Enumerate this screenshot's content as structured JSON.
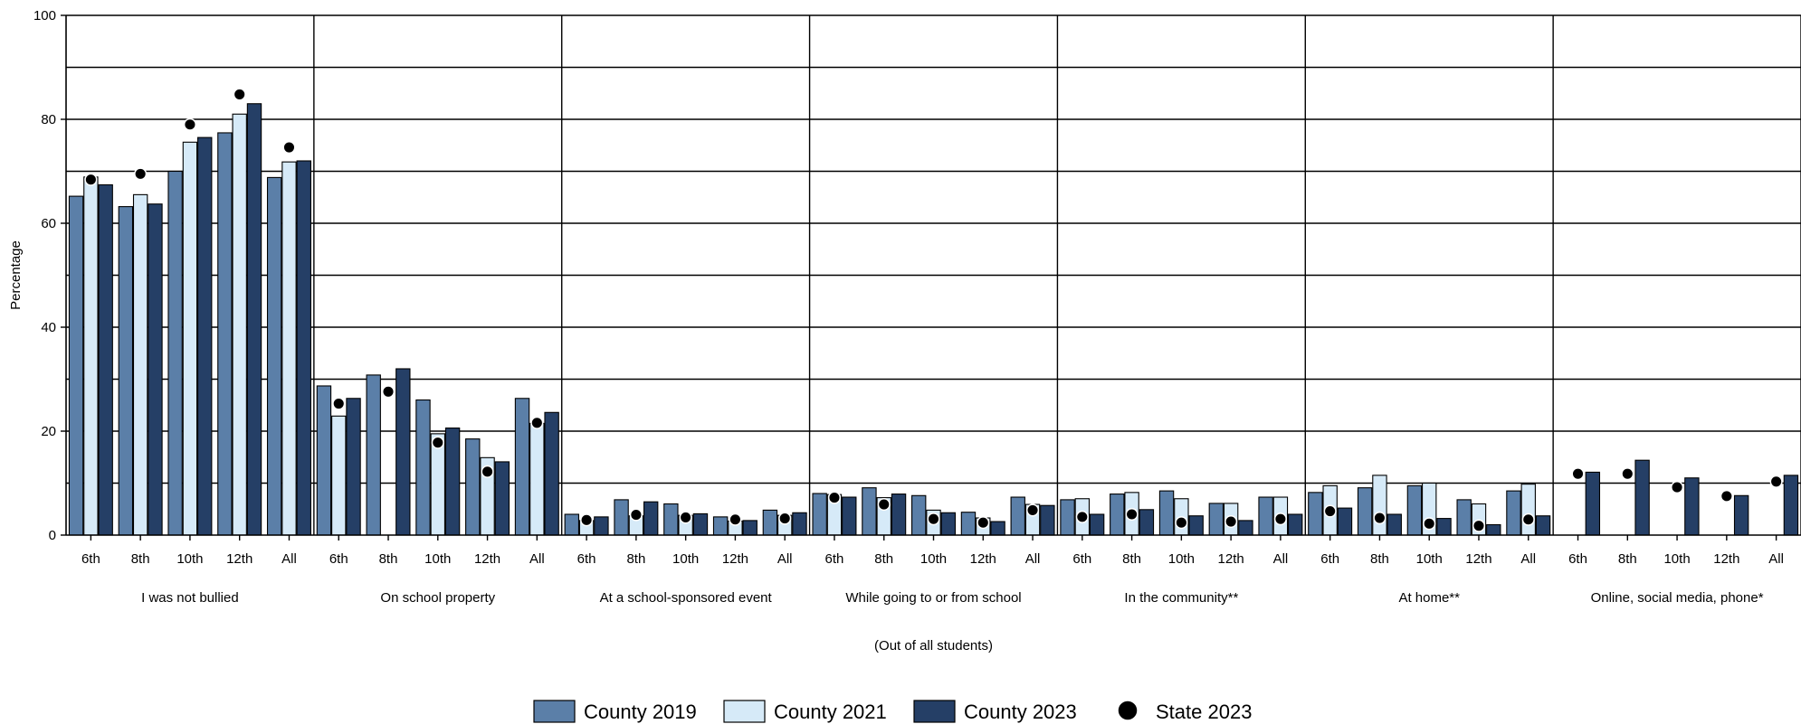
{
  "chart_data": {
    "type": "bar",
    "title": "",
    "ylabel": "Percentage",
    "xlabel": "(Out of all students)",
    "ylim": [
      0,
      100
    ],
    "yticks": [
      0,
      20,
      40,
      60,
      80,
      100
    ],
    "grid": true,
    "legend_position": "bottom",
    "groups": [
      "I was not bullied",
      "On school property",
      "At a school-sponsored event",
      "While going to or from school",
      "In the community**",
      "At home**",
      "Online, social media, phone*"
    ],
    "categories": [
      "6th",
      "8th",
      "10th",
      "12th",
      "All"
    ],
    "series": [
      {
        "name": "County 2019",
        "color": "#5b7fa8",
        "values": [
          [
            65.2,
            63.2,
            70.0,
            77.4,
            68.8
          ],
          [
            28.7,
            30.8,
            26.0,
            18.5,
            26.3
          ],
          [
            4.0,
            6.8,
            6.0,
            3.5,
            4.8
          ],
          [
            8.0,
            9.1,
            7.6,
            4.4,
            7.3
          ],
          [
            6.8,
            7.9,
            8.5,
            6.1,
            7.3
          ],
          [
            8.2,
            9.1,
            9.5,
            6.8,
            8.5
          ],
          [
            null,
            null,
            null,
            null,
            null
          ]
        ]
      },
      {
        "name": "County 2021",
        "color": "#d6eaf8",
        "values": [
          [
            68.9,
            65.5,
            75.6,
            81.0,
            71.8
          ],
          [
            22.9,
            null,
            19.5,
            14.9,
            21.5
          ],
          [
            2.8,
            3.7,
            3.8,
            2.7,
            3.8
          ],
          [
            7.8,
            7.2,
            4.8,
            3.3,
            5.9
          ],
          [
            7.0,
            8.2,
            7.0,
            6.1,
            7.3
          ],
          [
            9.5,
            11.5,
            10.0,
            6.0,
            9.8
          ],
          [
            null,
            null,
            null,
            null,
            null
          ]
        ]
      },
      {
        "name": "County 2023",
        "color": "#253f66",
        "values": [
          [
            67.4,
            63.7,
            76.5,
            83.0,
            72.0
          ],
          [
            26.3,
            32.0,
            20.6,
            14.1,
            23.6
          ],
          [
            3.5,
            6.4,
            4.1,
            2.8,
            4.3
          ],
          [
            7.3,
            7.9,
            4.3,
            2.6,
            5.7
          ],
          [
            4.0,
            4.9,
            3.7,
            2.8,
            4.0
          ],
          [
            5.2,
            4.0,
            3.2,
            2.0,
            3.7
          ],
          [
            12.1,
            14.4,
            11.0,
            7.6,
            11.5
          ]
        ]
      },
      {
        "name": "State 2023",
        "type": "scatter",
        "color": "#000000",
        "values": [
          [
            68.4,
            69.5,
            79.0,
            84.8,
            74.6
          ],
          [
            25.3,
            27.6,
            17.8,
            12.2,
            21.6
          ],
          [
            2.9,
            3.9,
            3.4,
            3.0,
            3.2
          ],
          [
            7.2,
            5.9,
            3.1,
            2.4,
            4.8
          ],
          [
            3.5,
            4.0,
            2.4,
            2.6,
            3.1
          ],
          [
            4.6,
            3.3,
            2.2,
            1.8,
            3.0
          ],
          [
            11.8,
            11.8,
            9.2,
            7.5,
            10.3
          ]
        ]
      }
    ]
  }
}
